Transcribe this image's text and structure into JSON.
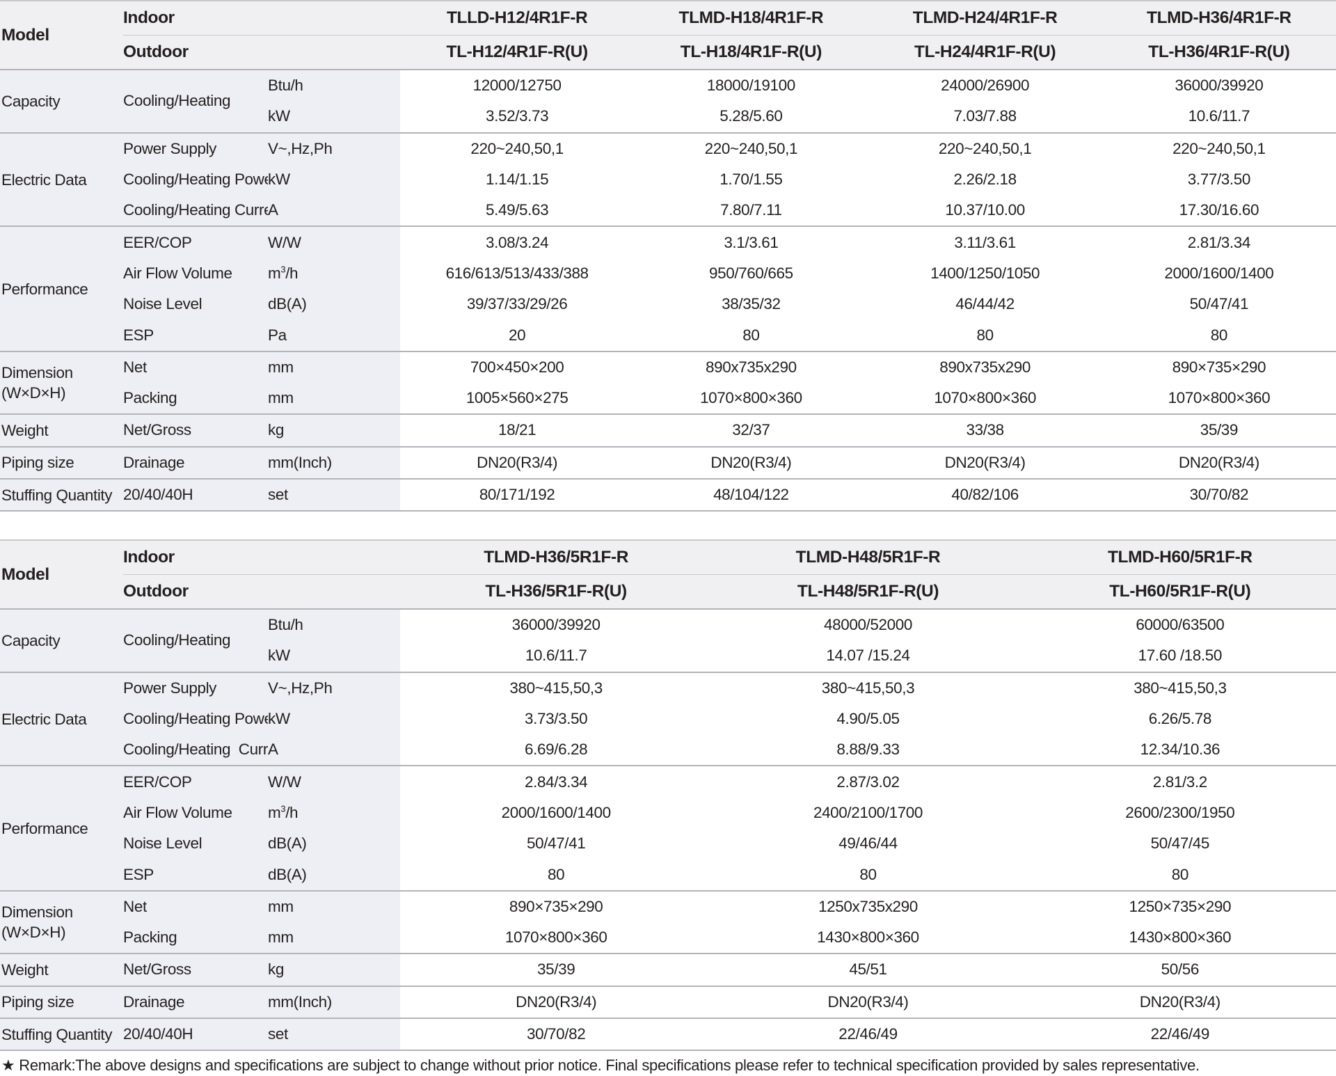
{
  "table1": {
    "model_label": "Model",
    "indoor_label": "Indoor",
    "outdoor_label": "Outdoor",
    "indoor_models": [
      "TLLD-H12/4R1F-R",
      "TLMD-H18/4R1F-R",
      "TLMD-H24/4R1F-R",
      "TLMD-H36/4R1F-R"
    ],
    "outdoor_models": [
      "TL-H12/4R1F-R(U)",
      "TL-H18/4R1F-R(U)",
      "TL-H24/4R1F-R(U)",
      "TL-H36/4R1F-R(U)"
    ],
    "capacity": {
      "category": "Capacity",
      "sub": "Cooling/Heating",
      "unit_btu": "Btu/h",
      "unit_kw": "kW",
      "btu": [
        "12000/12750",
        "18000/19100",
        "24000/26900",
        "36000/39920"
      ],
      "kw": [
        "3.52/3.73",
        "5.28/5.60",
        "7.03/7.88",
        "10.6/11.7"
      ]
    },
    "electric": {
      "category": "Electric Data",
      "power_supply": {
        "label": "Power Supply",
        "unit": "V~,Hz,Ph",
        "values": [
          "220~240,50,1",
          "220~240,50,1",
          "220~240,50,1",
          "220~240,50,1"
        ]
      },
      "power_input": {
        "label": "Cooling/Heating Power Input",
        "unit": "kW",
        "values": [
          "1.14/1.15",
          "1.70/1.55",
          "2.26/2.18",
          "3.77/3.50"
        ]
      },
      "current": {
        "label": "Cooling/Heating Current",
        "unit": "A",
        "values": [
          "5.49/5.63",
          "7.80/7.11",
          "10.37/10.00",
          "17.30/16.60"
        ]
      }
    },
    "performance": {
      "category": "Performance",
      "eer": {
        "label": "EER/COP",
        "unit": "W/W",
        "values": [
          "3.08/3.24",
          "3.1/3.61",
          "3.11/3.61",
          "2.81/3.34"
        ]
      },
      "airflow": {
        "label": "Air Flow Volume",
        "unit_base": "m",
        "unit_sup": "3",
        "unit_tail": "/h",
        "values": [
          "616/613/513/433/388",
          "950/760/665",
          "1400/1250/1050",
          "2000/1600/1400"
        ]
      },
      "noise": {
        "label": "Noise Level",
        "unit": "dB(A)",
        "values": [
          "39/37/33/29/26",
          "38/35/32",
          "46/44/42",
          "50/47/41"
        ]
      },
      "esp": {
        "label": "ESP",
        "unit": "Pa",
        "values": [
          "20",
          "80",
          "80",
          "80"
        ]
      }
    },
    "dimension": {
      "category_line1": "Dimension",
      "category_line2": "(W×D×H)",
      "net": {
        "label": "Net",
        "unit": "mm",
        "values": [
          "700×450×200",
          "890x735x290",
          "890x735x290",
          "890×735×290"
        ]
      },
      "packing": {
        "label": "Packing",
        "unit": "mm",
        "values": [
          "1005×560×275",
          "1070×800×360",
          "1070×800×360",
          "1070×800×360"
        ]
      }
    },
    "weight": {
      "category": "Weight",
      "label": "Net/Gross",
      "unit": "kg",
      "values": [
        "18/21",
        "32/37",
        "33/38",
        "35/39"
      ]
    },
    "piping": {
      "category": "Piping size",
      "label": "Drainage",
      "unit": "mm(Inch)",
      "values": [
        "DN20(R3/4)",
        "DN20(R3/4)",
        "DN20(R3/4)",
        "DN20(R3/4)"
      ]
    },
    "stuffing": {
      "category": "Stuffing Quantity",
      "label": "20/40/40H",
      "unit": "set",
      "values": [
        "80/171/192",
        "48/104/122",
        "40/82/106",
        "30/70/82"
      ]
    }
  },
  "table2": {
    "model_label": "Model",
    "indoor_label": "Indoor",
    "outdoor_label": "Outdoor",
    "indoor_models": [
      "TLMD-H36/5R1F-R",
      "TLMD-H48/5R1F-R",
      "TLMD-H60/5R1F-R"
    ],
    "outdoor_models": [
      "TL-H36/5R1F-R(U)",
      "TL-H48/5R1F-R(U)",
      "TL-H60/5R1F-R(U)"
    ],
    "capacity": {
      "category": "Capacity",
      "sub": "Cooling/Heating",
      "unit_btu": "Btu/h",
      "unit_kw": "kW",
      "btu": [
        "36000/39920",
        "48000/52000",
        "60000/63500"
      ],
      "kw": [
        "10.6/11.7",
        "14.07 /15.24",
        "17.60 /18.50"
      ]
    },
    "electric": {
      "category": "Electric Data",
      "power_supply": {
        "label": "Power Supply",
        "unit": "V~,Hz,Ph",
        "values": [
          "380~415,50,3",
          "380~415,50,3",
          "380~415,50,3"
        ]
      },
      "power_input": {
        "label": "Cooling/Heating Power Input",
        "unit": "kW",
        "values": [
          "3.73/3.50",
          "4.90/5.05",
          "6.26/5.78"
        ]
      },
      "current": {
        "label": "Cooling/Heating  Current",
        "unit": "A",
        "values": [
          "6.69/6.28",
          "8.88/9.33",
          "12.34/10.36"
        ]
      }
    },
    "performance": {
      "category": "Performance",
      "eer": {
        "label": "EER/COP",
        "unit": "W/W",
        "values": [
          "2.84/3.34",
          "2.87/3.02",
          "2.81/3.2"
        ]
      },
      "airflow": {
        "label": "Air Flow Volume",
        "unit_base": "m",
        "unit_sup": "3",
        "unit_tail": "/h",
        "values": [
          "2000/1600/1400",
          "2400/2100/1700",
          "2600/2300/1950"
        ]
      },
      "noise": {
        "label": "Noise Level",
        "unit": "dB(A)",
        "values": [
          "50/47/41",
          "49/46/44",
          "50/47/45"
        ]
      },
      "esp": {
        "label": "ESP",
        "unit": "dB(A)",
        "values": [
          "80",
          "80",
          "80"
        ]
      }
    },
    "dimension": {
      "category_line1": "Dimension",
      "category_line2": "(W×D×H)",
      "net": {
        "label": "Net",
        "unit": "mm",
        "values": [
          "890×735×290",
          "1250x735x290",
          "1250×735×290"
        ]
      },
      "packing": {
        "label": "Packing",
        "unit": "mm",
        "values": [
          "1070×800×360",
          "1430×800×360",
          "1430×800×360"
        ]
      }
    },
    "weight": {
      "category": "Weight",
      "label": "Net/Gross",
      "unit": "kg",
      "values": [
        "35/39",
        "45/51",
        "50/56"
      ]
    },
    "piping": {
      "category": "Piping size",
      "label": "Drainage",
      "unit": "mm(Inch)",
      "values": [
        "DN20(R3/4)",
        "DN20(R3/4)",
        "DN20(R3/4)"
      ]
    },
    "stuffing": {
      "category": "Stuffing Quantity",
      "label": "20/40/40H",
      "unit": "set",
      "values": [
        "30/70/82",
        "22/46/49",
        "22/46/49"
      ]
    }
  },
  "remark": {
    "star": "★",
    "text": "Remark:The above designs and specifications are subject to change without prior notice. Final specifications please refer to technical specification provided by sales representative."
  }
}
